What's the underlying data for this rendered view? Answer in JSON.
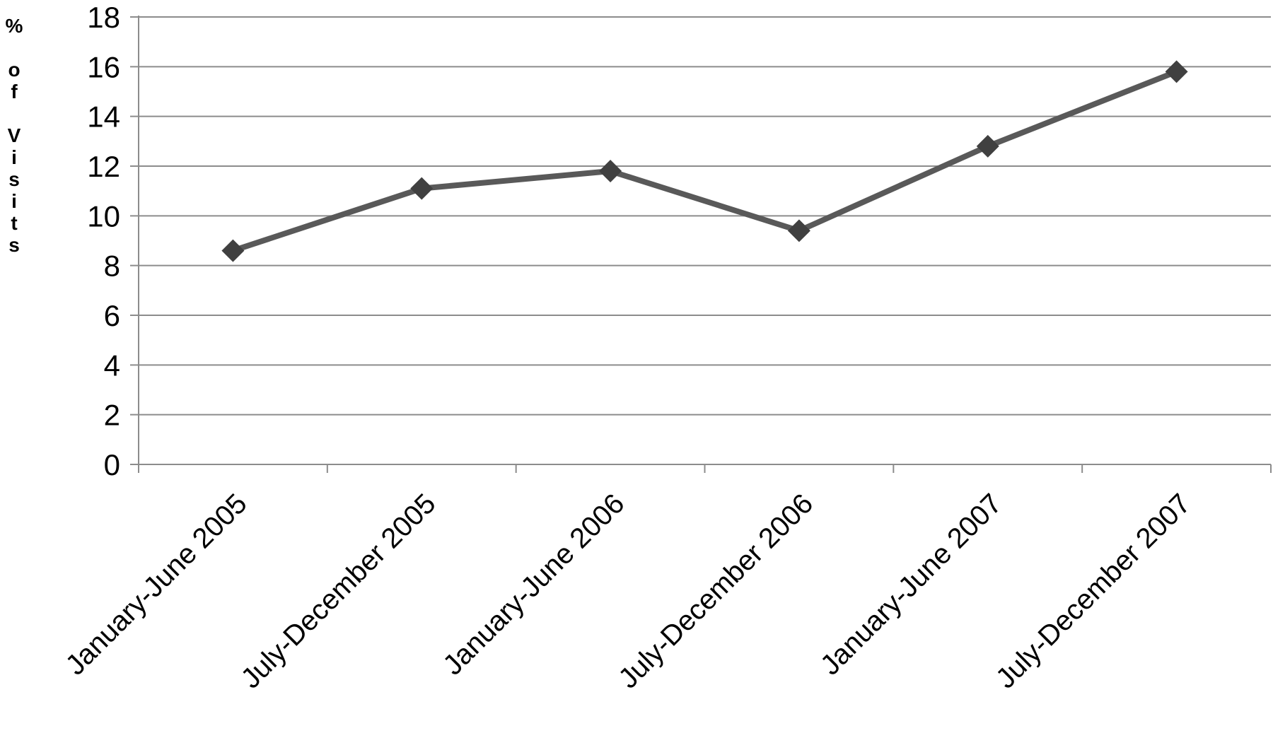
{
  "chart_data": {
    "type": "line",
    "title": "",
    "xlabel": "",
    "ylabel": "% of Visits",
    "categories": [
      "January-June 2005",
      "July-December 2005",
      "January-June 2006",
      "July-December 2006",
      "January-June 2007",
      "July-December 2007"
    ],
    "series": [
      {
        "values": [
          8.6,
          11.1,
          11.8,
          9.4,
          12.8,
          15.8
        ]
      }
    ],
    "ylim": [
      0,
      18
    ],
    "yticks": [
      0,
      2,
      4,
      6,
      8,
      10,
      12,
      14,
      16,
      18
    ],
    "grid": true,
    "legend": "none",
    "marker": "diamond",
    "colors": {
      "line": "#595959",
      "marker": "#404040",
      "grid": "#8c8c8c",
      "axis": "#8c8c8c"
    }
  }
}
